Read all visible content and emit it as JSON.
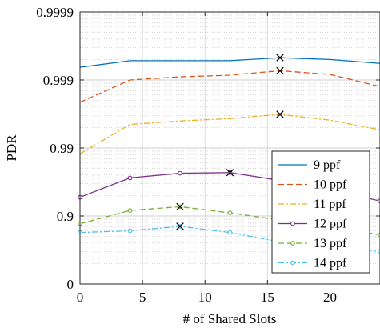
{
  "chart_data": {
    "type": "line",
    "xlabel": "# of Shared Slots",
    "ylabel": "PDR",
    "xlim": [
      0,
      24
    ],
    "y_scale": "log-nines",
    "x_ticks": [
      0,
      5,
      10,
      15,
      20
    ],
    "x_tick_labels": [
      "0",
      "5",
      "10",
      "15",
      "20"
    ],
    "y_ticks": [
      0,
      0.9,
      0.99,
      0.999,
      0.9999
    ],
    "y_tick_labels": [
      "0",
      "0.9",
      "0.99",
      "0.999",
      "0.9999"
    ],
    "grid": true,
    "legend_position": "right",
    "x": [
      0,
      4,
      8,
      12,
      16,
      20,
      24
    ],
    "series": [
      {
        "name": "9 ppf",
        "color": "#0072BD",
        "dash": "solid",
        "marker": "none",
        "values": [
          0.99935,
          0.99948,
          0.99948,
          0.99948,
          0.99953,
          0.9995,
          0.99943
        ]
      },
      {
        "name": "10 ppf",
        "color": "#D95319",
        "dash": "dashed",
        "marker": "none",
        "values": [
          0.99787,
          0.999,
          0.9991,
          0.99915,
          0.99927,
          0.99917,
          0.99875
        ]
      },
      {
        "name": "11 ppf",
        "color": "#EDB120",
        "dash": "dashdot",
        "marker": "none",
        "values": [
          0.9878,
          0.9955,
          0.996,
          0.9963,
          0.9968,
          0.9961,
          0.9946
        ]
      },
      {
        "name": "12 ppf",
        "color": "#7E2F8E",
        "dash": "solid",
        "marker": "circle",
        "values": [
          0.947,
          0.9725,
          0.9765,
          0.977,
          0.97,
          0.958,
          0.94
        ]
      },
      {
        "name": "13 ppf",
        "color": "#77AC30",
        "dash": "dashed",
        "marker": "circle",
        "values": [
          0.87,
          0.917,
          0.927,
          0.91,
          0.885,
          0.86,
          0.81
        ]
      },
      {
        "name": "14 ppf",
        "color": "#4DBEEE",
        "dash": "dashdot",
        "marker": "circle",
        "values": [
          0.825,
          0.835,
          0.858,
          0.825,
          0.76,
          0.72,
          0.67
        ]
      }
    ],
    "peaks": [
      {
        "series": "9 ppf",
        "x": 16,
        "y": 0.99953
      },
      {
        "series": "10 ppf",
        "x": 16,
        "y": 0.99927
      },
      {
        "series": "11 ppf",
        "x": 16,
        "y": 0.9968
      },
      {
        "series": "12 ppf",
        "x": 12,
        "y": 0.977
      },
      {
        "series": "13 ppf",
        "x": 8,
        "y": 0.927
      },
      {
        "series": "14 ppf",
        "x": 8,
        "y": 0.858
      }
    ]
  }
}
